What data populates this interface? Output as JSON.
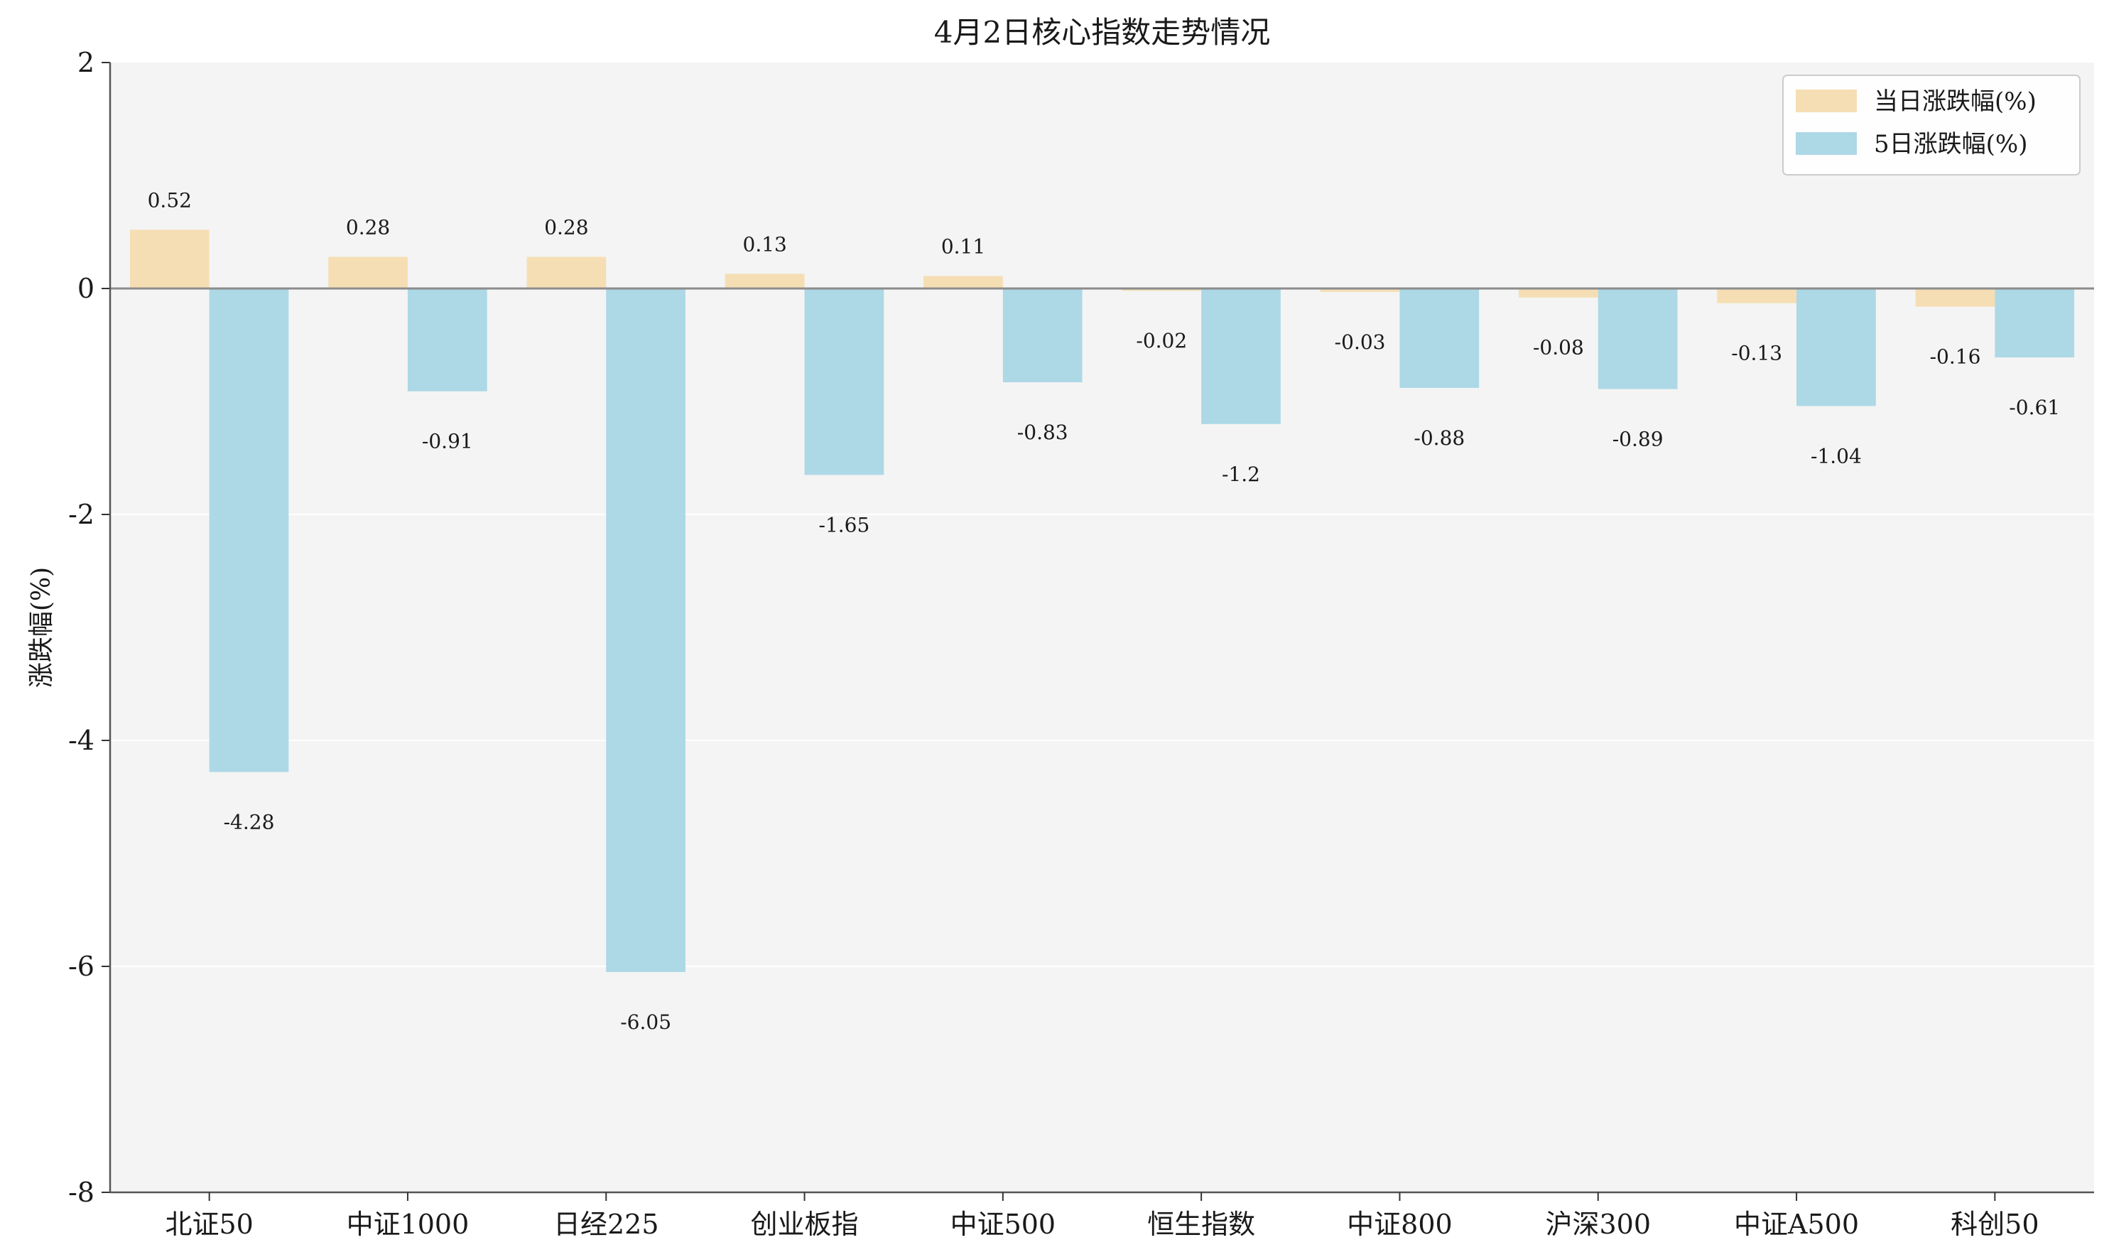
{
  "chart_data": {
    "type": "bar",
    "title": "4月2日核心指数走势情况",
    "xlabel": "",
    "ylabel": "涨跌幅(%)",
    "ylim": [
      -8,
      2
    ],
    "yticks": [
      2,
      0,
      -2,
      -4,
      -6,
      -8
    ],
    "grid": true,
    "legend_position": "top-right",
    "categories": [
      "北证50",
      "中证1000",
      "日经225",
      "创业板指",
      "中证500",
      "恒生指数",
      "中证800",
      "沪深300",
      "中证A500",
      "科创50"
    ],
    "series": [
      {
        "name": "当日涨跌幅(%)",
        "color": "#f5deb3",
        "values": [
          0.52,
          0.28,
          0.28,
          0.13,
          0.11,
          -0.02,
          -0.03,
          -0.08,
          -0.13,
          -0.16
        ],
        "labels": [
          "0.52",
          "0.28",
          "0.28",
          "0.13",
          "0.11",
          "-0.02",
          "-0.03",
          "-0.08",
          "-0.13",
          "-0.16"
        ]
      },
      {
        "name": "5日涨跌幅(%)",
        "color": "#add8e6",
        "values": [
          -4.28,
          -0.91,
          -6.05,
          -1.65,
          -0.83,
          -1.2,
          -0.88,
          -0.89,
          -1.04,
          -0.61
        ],
        "labels": [
          "-4.28",
          "-0.91",
          "-6.05",
          "-1.65",
          "-0.83",
          "-1.2",
          "-0.88",
          "-0.89",
          "-1.04",
          "-0.61"
        ]
      }
    ]
  }
}
